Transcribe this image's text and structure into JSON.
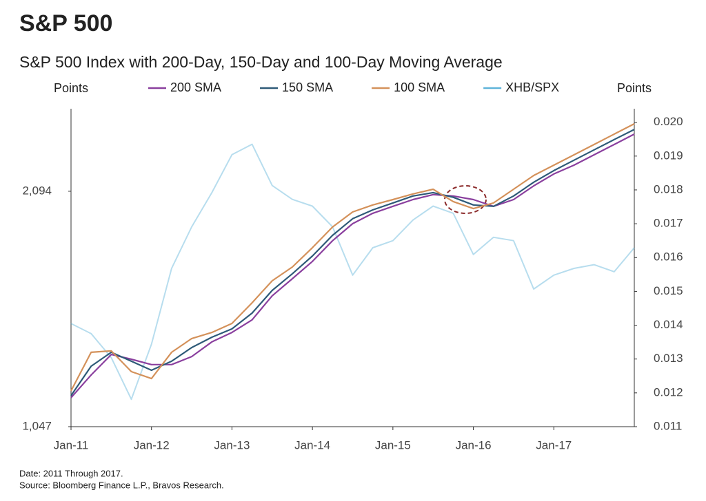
{
  "chart_data": {
    "type": "line",
    "title": "S&P 500",
    "subtitle": "S&P 500 Index with 200-Day, 150-Day and 100-Day Moving Average",
    "ylabel": "Points",
    "y2label": "Points",
    "note": "Date: 2011 Through 2017.",
    "source": "Source: Bloomberg Finance L.P., Bravos Research.",
    "x": [
      2011,
      2011.25,
      2011.5,
      2011.75,
      2012,
      2012.25,
      2012.5,
      2012.75,
      2013,
      2013.25,
      2013.5,
      2013.75,
      2014,
      2014.25,
      2014.5,
      2014.75,
      2015,
      2015.25,
      2015.5,
      2015.75,
      2016,
      2016.25,
      2016.5,
      2016.75,
      2017,
      2017.25,
      2017.5,
      2017.75,
      2018
    ],
    "xlim": [
      2011,
      2018
    ],
    "xticks": [
      {
        "value": 2011,
        "label": "Jan-11"
      },
      {
        "value": 2012,
        "label": "Jan-12"
      },
      {
        "value": 2013,
        "label": "Jan-13"
      },
      {
        "value": 2014,
        "label": "Jan-14"
      },
      {
        "value": 2015,
        "label": "Jan-15"
      },
      {
        "value": 2016,
        "label": "Jan-16"
      },
      {
        "value": 2017,
        "label": "Jan-17"
      }
    ],
    "ylim": [
      1047,
      2461
    ],
    "yticks": [
      {
        "value": 1047,
        "label": "1,047"
      },
      {
        "value": 2094,
        "label": "2,094"
      }
    ],
    "y2lim": [
      0.011,
      0.0204
    ],
    "y2ticks": [
      0.011,
      0.012,
      0.013,
      0.014,
      0.015,
      0.016,
      0.017,
      0.018,
      0.019,
      {
        "value": 0.02,
        "label": "0.020"
      }
    ],
    "series": [
      {
        "name": "200 SMA",
        "color": "#8a3f9e",
        "values": [
          1176,
          1277,
          1368,
          1347,
          1323,
          1323,
          1359,
          1424,
          1466,
          1522,
          1629,
          1705,
          1782,
          1874,
          1950,
          1996,
          2027,
          2057,
          2079,
          2073,
          2057,
          2027,
          2057,
          2118,
          2171,
          2210,
          2256,
          2302,
          2348
        ]
      },
      {
        "name": "150 SMA",
        "color": "#2e5a78",
        "values": [
          1185,
          1316,
          1378,
          1338,
          1298,
          1338,
          1399,
          1445,
          1482,
          1552,
          1653,
          1727,
          1806,
          1898,
          1972,
          2011,
          2042,
          2073,
          2088,
          2067,
          2033,
          2027,
          2073,
          2134,
          2186,
          2232,
          2278,
          2324,
          2369
        ]
      },
      {
        "name": "100 SMA",
        "color": "#d4915a",
        "values": [
          1206,
          1378,
          1384,
          1292,
          1261,
          1378,
          1439,
          1466,
          1506,
          1598,
          1696,
          1757,
          1843,
          1935,
          2002,
          2033,
          2057,
          2082,
          2103,
          2048,
          2017,
          2042,
          2103,
          2164,
          2210,
          2256,
          2302,
          2348,
          2394
        ]
      },
      {
        "name": "XHB/SPX",
        "color": "#5fb3d9",
        "axis": "y2",
        "values": [
          0.01405,
          0.01375,
          0.01304,
          0.01181,
          0.01344,
          0.01568,
          0.01691,
          0.01792,
          0.01904,
          0.01935,
          0.01813,
          0.01772,
          0.01752,
          0.01691,
          0.01548,
          0.01629,
          0.0165,
          0.01711,
          0.01752,
          0.01731,
          0.01609,
          0.0166,
          0.0165,
          0.01507,
          0.01548,
          0.01568,
          0.01579,
          0.01558,
          0.01629
        ]
      }
    ]
  }
}
